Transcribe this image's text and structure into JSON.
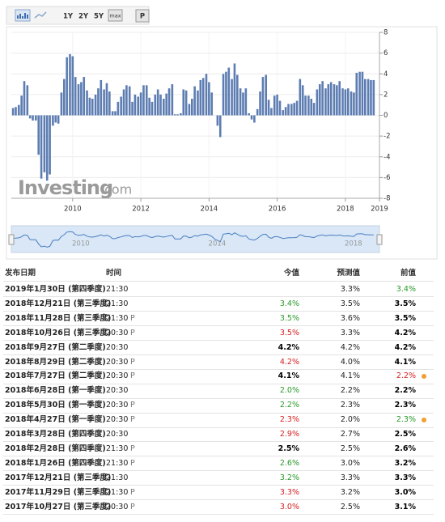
{
  "toolbar": {
    "ranges": [
      "1Y",
      "2Y",
      "5Y",
      "max"
    ],
    "mode": "P"
  },
  "chart_data": {
    "type": "bar",
    "color": "#5d7db2",
    "x": [
      2008.25,
      2008.33,
      2008.42,
      2008.5,
      2008.58,
      2008.67,
      2008.75,
      2008.83,
      2008.92,
      2009,
      2009.08,
      2009.17,
      2009.25,
      2009.33,
      2009.42,
      2009.5,
      2009.58,
      2009.67,
      2009.75,
      2009.83,
      2009.92,
      2010,
      2010.08,
      2010.17,
      2010.25,
      2010.33,
      2010.42,
      2010.5,
      2010.58,
      2010.67,
      2010.75,
      2010.83,
      2010.92,
      2011,
      2011.08,
      2011.17,
      2011.25,
      2011.33,
      2011.42,
      2011.5,
      2011.58,
      2011.67,
      2011.75,
      2011.83,
      2011.92,
      2012,
      2012.08,
      2012.17,
      2012.25,
      2012.33,
      2012.42,
      2012.5,
      2012.58,
      2012.67,
      2012.75,
      2012.83,
      2012.92,
      2013,
      2013.08,
      2013.17,
      2013.25,
      2013.33,
      2013.42,
      2013.5,
      2013.58,
      2013.67,
      2013.75,
      2013.83,
      2013.92,
      2014,
      2014.08,
      2014.17,
      2014.25,
      2014.33,
      2014.42,
      2014.5,
      2014.58,
      2014.67,
      2014.75,
      2014.83,
      2014.92,
      2015,
      2015.08,
      2015.17,
      2015.25,
      2015.33,
      2015.42,
      2015.5,
      2015.58,
      2015.67,
      2015.75,
      2015.83,
      2015.92,
      2016,
      2016.08,
      2016.17,
      2016.25,
      2016.33,
      2016.42,
      2016.5,
      2016.58,
      2016.67,
      2016.75,
      2016.83,
      2016.92,
      2017,
      2017.08,
      2017.17,
      2017.25,
      2017.33,
      2017.42,
      2017.5,
      2017.58,
      2017.67,
      2017.75,
      2017.83,
      2017.92,
      2018,
      2018.08,
      2018.17,
      2018.25,
      2018.33,
      2018.42,
      2018.5,
      2018.58,
      2018.67,
      2018.75,
      2018.83
    ],
    "values": [
      0.7,
      0.8,
      1.0,
      1.9,
      3.3,
      2.9,
      -0.3,
      -0.5,
      -0.5,
      -3.8,
      -6.1,
      -5.5,
      -6.3,
      -5.7,
      -1.0,
      -0.7,
      -0.8,
      2.2,
      3.5,
      5.6,
      5.9,
      5.7,
      3.7,
      3.0,
      3.2,
      3.7,
      2.4,
      1.7,
      1.6,
      2.0,
      2.6,
      3.4,
      2.5,
      3.1,
      2.3,
      0.4,
      0.4,
      1.3,
      1.8,
      2.5,
      2.9,
      2.8,
      1.3,
      2.0,
      1.8,
      2.2,
      2.9,
      2.9,
      1.7,
      1.3,
      2.0,
      2.5,
      2.0,
      1.6,
      2.1,
      2.6,
      3.0,
      0.1,
      0.1,
      0.2,
      2.5,
      2.4,
      1.1,
      1.6,
      2.8,
      2.4,
      3.4,
      3.6,
      4.0,
      3.2,
      2.2,
      0.0,
      -1.0,
      -2.1,
      4.0,
      4.2,
      4.6,
      3.5,
      5.0,
      3.9,
      2.6,
      2.2,
      2.6,
      0.2,
      -0.4,
      -0.7,
      0.6,
      2.3,
      3.7,
      3.9,
      1.5,
      0.7,
      1.9,
      2.0,
      1.4,
      0.5,
      0.8,
      1.1,
      1.1,
      1.2,
      1.4,
      3.5,
      2.9,
      1.9,
      1.9,
      1.6,
      1.2,
      2.5,
      3.0,
      3.3,
      2.6,
      3.0,
      3.2,
      3.0,
      2.9,
      3.3,
      2.6,
      2.5,
      2.6,
      2.3,
      2.2,
      4.1,
      4.2,
      4.2,
      3.5,
      3.5,
      3.4,
      3.4
    ],
    "xlim": [
      2008.2,
      2019
    ],
    "xticks": [
      2010,
      2012,
      2014,
      2016,
      2018,
      2019
    ],
    "ylim": [
      -8,
      8
    ],
    "yticks": [
      -8,
      -6,
      -4,
      -2,
      0,
      2,
      4,
      6,
      8
    ],
    "grid": true,
    "watermark": "Investing",
    "watermark_suffix": ".com",
    "navigator_xticks": [
      2010,
      2014,
      2018
    ]
  },
  "table": {
    "headers": [
      "发布日期",
      "时间",
      "今值",
      "预测值",
      "前值"
    ],
    "preliminary_mark": "P",
    "rows": [
      [
        "2019年1月30日 (第四季度)",
        "21:30",
        null,
        "3.3%",
        "3.4%"
      ],
      [
        "2018年12月21日 (第三季度)",
        "21:30",
        "3.4%",
        "3.5%",
        "3.5%"
      ],
      [
        "2018年11月28日 (第三季度)",
        "21:30",
        "3.5%",
        "3.6%",
        "3.5%"
      ],
      [
        "2018年10月26日 (第三季度)",
        "20:30",
        "3.5%",
        "3.3%",
        "4.2%"
      ],
      [
        "2018年9月27日 (第二季度)",
        "20:30",
        "4.2%",
        "4.2%",
        "4.2%"
      ],
      [
        "2018年8月29日 (第二季度)",
        "20:30",
        "4.2%",
        "4.0%",
        "4.1%"
      ],
      [
        "2018年7月27日 (第二季度)",
        "20:30",
        "4.1%",
        "4.1%",
        "2.2%"
      ],
      [
        "2018年6月28日 (第一季度)",
        "20:30",
        "2.0%",
        "2.2%",
        "2.2%"
      ],
      [
        "2018年5月30日 (第一季度)",
        "20:30",
        "2.2%",
        "2.3%",
        "2.3%"
      ],
      [
        "2018年4月27日 (第一季度)",
        "20:30",
        "2.3%",
        "2.0%",
        "2.3%"
      ],
      [
        "2018年3月28日 (第四季度)",
        "20:30",
        "2.9%",
        "2.7%",
        "2.5%"
      ],
      [
        "2018年2月28日 (第四季度)",
        "21:30",
        "2.5%",
        "2.5%",
        "2.6%"
      ],
      [
        "2018年1月26日 (第四季度)",
        "21:30",
        "2.6%",
        "3.0%",
        "3.2%"
      ],
      [
        "2017年12月21日 (第三季度)",
        "21:30",
        "3.2%",
        "3.3%",
        "3.3%"
      ],
      [
        "2017年11月29日 (第三季度)",
        "21:30",
        "3.3%",
        "3.2%",
        "3.0%"
      ],
      [
        "2017年10月27日 (第三季度)",
        "20:30",
        "3.0%",
        "2.5%",
        "3.1%"
      ]
    ],
    "preliminary": [
      false,
      false,
      true,
      true,
      false,
      true,
      true,
      false,
      true,
      true,
      false,
      true,
      true,
      false,
      true,
      true
    ],
    "actual_colors": [
      "#000",
      "#2a9a2a",
      "#2a9a2a",
      "#d62020",
      "#000",
      "#d62020",
      "#000",
      "#2a9a2a",
      "#2a9a2a",
      "#d62020",
      "#d62020",
      "#000",
      "#2a9a2a",
      "#2a9a2a",
      "#d62020",
      "#d62020"
    ],
    "previous_colors": [
      "#2a9a2a",
      "#000",
      "#000",
      "#000",
      "#000",
      "#000",
      "#d62020",
      "#000",
      "#000",
      "#2a9a2a",
      "#000",
      "#000",
      "#000",
      "#000",
      "#000",
      "#000"
    ],
    "alert_dots": [
      false,
      false,
      false,
      false,
      false,
      false,
      true,
      false,
      false,
      true,
      false,
      false,
      false,
      false,
      false,
      false
    ]
  }
}
